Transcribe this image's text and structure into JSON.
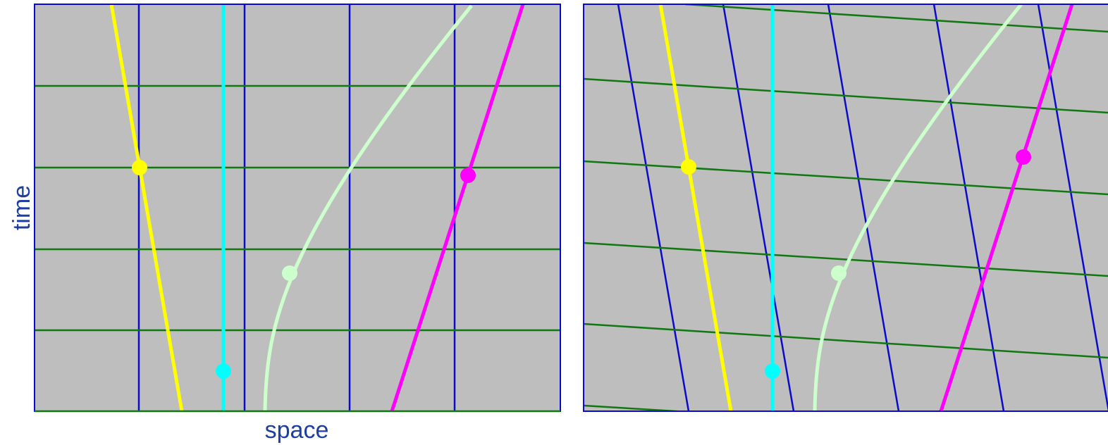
{
  "labels": {
    "y_axis": "time",
    "x_axis": "space"
  }
}
